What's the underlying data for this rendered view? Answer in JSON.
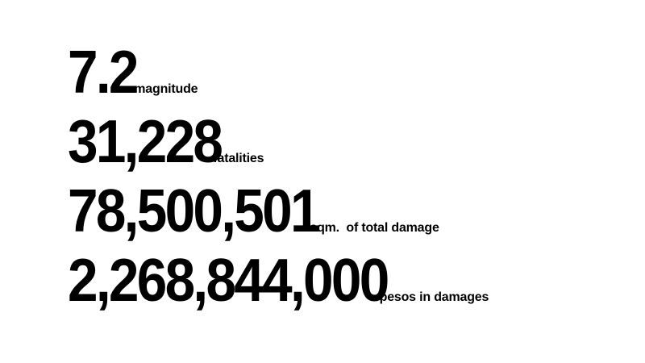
{
  "stats": [
    {
      "value": "7.2",
      "label": "magnitude"
    },
    {
      "value": "31,228",
      "label": "fatalities"
    },
    {
      "value": "78,500,501",
      "label": "sqm.  of total damage"
    },
    {
      "value": "2,268,844,000",
      "label": "pesos in damages"
    }
  ],
  "colors": {
    "background": "#ffffff",
    "text": "#000000"
  }
}
